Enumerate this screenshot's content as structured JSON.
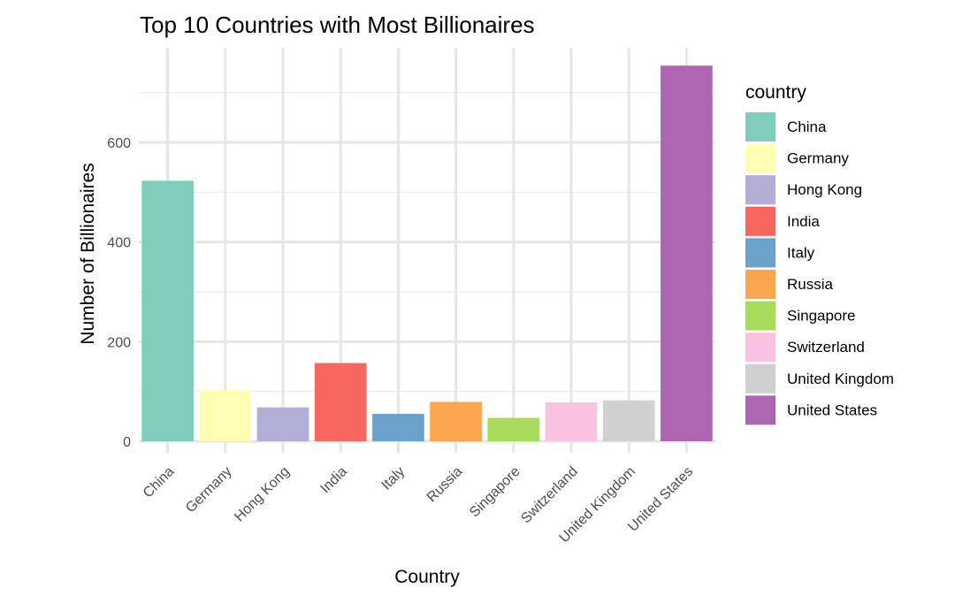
{
  "chart_data": {
    "type": "bar",
    "title": "Top 10 Countries with Most Billionaires",
    "xlabel": "Country",
    "ylabel": "Number of Billionaires",
    "categories": [
      "China",
      "Germany",
      "Hong Kong",
      "India",
      "Italy",
      "Russia",
      "Singapore",
      "Switzerland",
      "United Kingdom",
      "United States"
    ],
    "values": [
      523,
      102,
      68,
      157,
      55,
      79,
      47,
      78,
      82,
      754
    ],
    "colors": [
      "#7fcdbb",
      "#ffffb3",
      "#b3aed6",
      "#f8665f",
      "#6ba2cc",
      "#fca54f",
      "#a8dc5a",
      "#f9c2e1",
      "#d0d0d0",
      "#ae66b3"
    ],
    "ylim": [
      0,
      760
    ],
    "yticks": [
      0,
      200,
      400,
      600
    ],
    "grid": true,
    "legend": {
      "title": "country",
      "placement": "right",
      "entries": [
        "China",
        "Germany",
        "Hong Kong",
        "India",
        "Italy",
        "Russia",
        "Singapore",
        "Switzerland",
        "United Kingdom",
        "United States"
      ]
    }
  }
}
